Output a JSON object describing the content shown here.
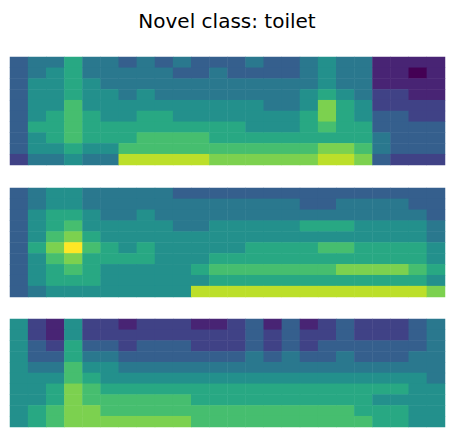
{
  "title": "Novel class: toilet",
  "chart_data": [
    {
      "type": "heatmap",
      "tick_labels": false,
      "zlim": [
        0,
        10
      ],
      "cells": [
        [
          3,
          4,
          4,
          6,
          4,
          4,
          3,
          4,
          3,
          4,
          3,
          3,
          3,
          4,
          3,
          3,
          4,
          5,
          4,
          4,
          1,
          1,
          1,
          1
        ],
        [
          3,
          4,
          5,
          6,
          4,
          4,
          4,
          4,
          4,
          3,
          3,
          4,
          3,
          3,
          3,
          3,
          4,
          5,
          4,
          4,
          1,
          1,
          0,
          1
        ],
        [
          3,
          5,
          5,
          6,
          5,
          4,
          4,
          4,
          4,
          4,
          4,
          4,
          4,
          4,
          4,
          4,
          4,
          5,
          4,
          4,
          1,
          1,
          1,
          1
        ],
        [
          3,
          5,
          5,
          6,
          5,
          5,
          4,
          5,
          4,
          4,
          4,
          4,
          4,
          4,
          4,
          4,
          5,
          6,
          5,
          4,
          2,
          2,
          1,
          1
        ],
        [
          3,
          5,
          5,
          7,
          5,
          5,
          5,
          5,
          5,
          5,
          5,
          5,
          5,
          5,
          4,
          4,
          5,
          8,
          6,
          5,
          2,
          2,
          2,
          2
        ],
        [
          3,
          5,
          6,
          7,
          6,
          5,
          5,
          6,
          6,
          5,
          5,
          5,
          5,
          5,
          5,
          5,
          6,
          8,
          6,
          5,
          3,
          3,
          2,
          2
        ],
        [
          3,
          6,
          6,
          7,
          6,
          6,
          6,
          6,
          6,
          6,
          6,
          6,
          6,
          5,
          5,
          5,
          6,
          7,
          6,
          6,
          3,
          3,
          3,
          3
        ],
        [
          3,
          5,
          6,
          7,
          6,
          6,
          6,
          7,
          7,
          7,
          7,
          6,
          6,
          6,
          6,
          6,
          6,
          6,
          6,
          6,
          4,
          3,
          3,
          3
        ],
        [
          3,
          5,
          5,
          6,
          5,
          5,
          7,
          7,
          7,
          7,
          7,
          7,
          7,
          7,
          7,
          7,
          7,
          8,
          8,
          7,
          4,
          3,
          3,
          3
        ],
        [
          2,
          4,
          4,
          5,
          4,
          4,
          9,
          9,
          9,
          9,
          9,
          8,
          8,
          8,
          8,
          8,
          8,
          9,
          9,
          8,
          3,
          2,
          2,
          2
        ]
      ]
    },
    {
      "type": "heatmap",
      "tick_labels": false,
      "zlim": [
        0,
        10
      ],
      "cells": [
        [
          3,
          4,
          5,
          5,
          4,
          4,
          4,
          4,
          4,
          3,
          3,
          3,
          3,
          3,
          3,
          3,
          3,
          3,
          3,
          3,
          3,
          3,
          3,
          3
        ],
        [
          3,
          4,
          5,
          5,
          4,
          4,
          4,
          4,
          4,
          4,
          4,
          4,
          4,
          4,
          4,
          4,
          3,
          3,
          4,
          4,
          4,
          4,
          3,
          3
        ],
        [
          3,
          5,
          6,
          6,
          5,
          4,
          4,
          5,
          4,
          4,
          4,
          4,
          4,
          4,
          4,
          4,
          4,
          4,
          4,
          4,
          4,
          4,
          4,
          3
        ],
        [
          3,
          5,
          6,
          7,
          5,
          5,
          5,
          5,
          5,
          4,
          4,
          5,
          5,
          5,
          5,
          5,
          6,
          6,
          6,
          5,
          5,
          5,
          5,
          4
        ],
        [
          3,
          5,
          7,
          8,
          6,
          5,
          5,
          5,
          5,
          5,
          5,
          5,
          5,
          5,
          5,
          5,
          5,
          5,
          5,
          5,
          5,
          5,
          5,
          4
        ],
        [
          3,
          6,
          8,
          10,
          7,
          6,
          5,
          6,
          5,
          5,
          5,
          5,
          5,
          6,
          6,
          6,
          6,
          7,
          7,
          6,
          6,
          6,
          6,
          5
        ],
        [
          3,
          5,
          7,
          8,
          6,
          6,
          6,
          6,
          5,
          5,
          5,
          6,
          6,
          6,
          6,
          6,
          6,
          6,
          6,
          6,
          6,
          6,
          6,
          5
        ],
        [
          3,
          5,
          6,
          7,
          6,
          5,
          5,
          5,
          5,
          5,
          6,
          7,
          7,
          7,
          7,
          7,
          7,
          7,
          8,
          8,
          8,
          8,
          7,
          6
        ],
        [
          3,
          5,
          6,
          6,
          6,
          5,
          5,
          5,
          5,
          5,
          5,
          6,
          6,
          6,
          6,
          6,
          6,
          6,
          6,
          6,
          6,
          6,
          6,
          5
        ],
        [
          3,
          4,
          5,
          5,
          5,
          5,
          5,
          5,
          5,
          5,
          9,
          9,
          9,
          9,
          9,
          9,
          9,
          9,
          9,
          9,
          9,
          9,
          9,
          8
        ]
      ]
    },
    {
      "type": "heatmap",
      "tick_labels": false,
      "zlim": [
        0,
        10
      ],
      "cells": [
        [
          5,
          2,
          1,
          5,
          2,
          2,
          1,
          2,
          2,
          2,
          1,
          1,
          2,
          3,
          1,
          3,
          1,
          2,
          3,
          2,
          2,
          2,
          3,
          4
        ],
        [
          5,
          2,
          1,
          5,
          2,
          2,
          2,
          2,
          2,
          2,
          2,
          2,
          2,
          3,
          2,
          3,
          2,
          2,
          3,
          2,
          2,
          2,
          3,
          4
        ],
        [
          5,
          3,
          2,
          6,
          3,
          3,
          2,
          3,
          3,
          3,
          2,
          2,
          2,
          3,
          2,
          3,
          2,
          3,
          3,
          3,
          3,
          3,
          3,
          4
        ],
        [
          5,
          3,
          3,
          6,
          4,
          4,
          3,
          3,
          3,
          3,
          3,
          3,
          3,
          4,
          3,
          4,
          3,
          3,
          4,
          3,
          3,
          3,
          4,
          4
        ],
        [
          5,
          4,
          4,
          7,
          5,
          5,
          4,
          4,
          4,
          4,
          4,
          4,
          4,
          4,
          4,
          4,
          4,
          4,
          4,
          4,
          4,
          4,
          4,
          4
        ],
        [
          5,
          5,
          5,
          7,
          6,
          5,
          5,
          5,
          5,
          5,
          5,
          5,
          5,
          5,
          5,
          5,
          5,
          5,
          5,
          5,
          5,
          5,
          5,
          4
        ],
        [
          5,
          5,
          6,
          8,
          7,
          6,
          6,
          6,
          6,
          6,
          6,
          6,
          6,
          6,
          6,
          6,
          6,
          6,
          6,
          6,
          6,
          6,
          5,
          5
        ],
        [
          5,
          5,
          6,
          8,
          7,
          7,
          7,
          7,
          7,
          7,
          6,
          6,
          6,
          6,
          6,
          6,
          6,
          6,
          6,
          6,
          5,
          5,
          5,
          5
        ],
        [
          5,
          6,
          7,
          8,
          8,
          7,
          7,
          7,
          7,
          7,
          7,
          7,
          7,
          7,
          7,
          7,
          7,
          7,
          7,
          6,
          6,
          6,
          5,
          5
        ],
        [
          5,
          6,
          7,
          8,
          8,
          8,
          8,
          8,
          8,
          8,
          7,
          7,
          7,
          7,
          7,
          7,
          7,
          7,
          7,
          7,
          6,
          6,
          5,
          5
        ]
      ]
    }
  ]
}
